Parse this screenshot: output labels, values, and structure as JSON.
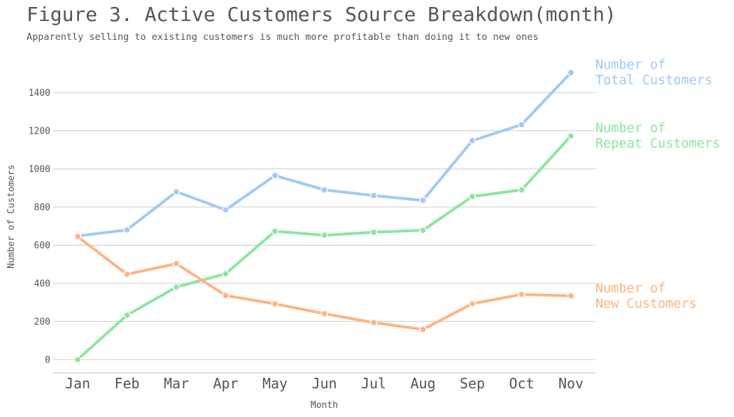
{
  "title": "Figure 3. Active Customers Source Breakdown(month)",
  "subtitle": "Apparently selling to existing customers is much more profitable than doing it to new ones",
  "chart_data": {
    "type": "line",
    "title": "Figure 3. Active Customers Source Breakdown(month)",
    "subtitle": "Apparently selling to existing customers is much more profitable than doing it to new ones",
    "xlabel": "Month",
    "ylabel": "Number of Customers",
    "categories": [
      "Jan",
      "Feb",
      "Mar",
      "Apr",
      "May",
      "Jun",
      "Jul",
      "Aug",
      "Sep",
      "Oct",
      "Nov"
    ],
    "ylim": [
      -70,
      1570
    ],
    "yticks": [
      0,
      200,
      400,
      600,
      800,
      1000,
      1200,
      1400
    ],
    "grid": "horizontal",
    "legend": "right, inline labels",
    "series": [
      {
        "name": "Number of Total Customers",
        "label_lines": [
          "Number of",
          "Total Customers"
        ],
        "color": "#a1c9f4",
        "values": [
          648,
          680,
          880,
          785,
          965,
          890,
          860,
          835,
          1148,
          1232,
          1505
        ]
      },
      {
        "name": "Number of Repeat Customers",
        "label_lines": [
          "Number of",
          "Repeat Customers"
        ],
        "color": "#8de5a1",
        "values": [
          0,
          233,
          380,
          450,
          673,
          652,
          668,
          678,
          855,
          890,
          1173
        ]
      },
      {
        "name": "Number of New Customers",
        "label_lines": [
          "Number of",
          "New Customers"
        ],
        "color": "#ffb482",
        "values": [
          645,
          447,
          503,
          336,
          292,
          241,
          194,
          158,
          293,
          342,
          334
        ]
      }
    ]
  }
}
